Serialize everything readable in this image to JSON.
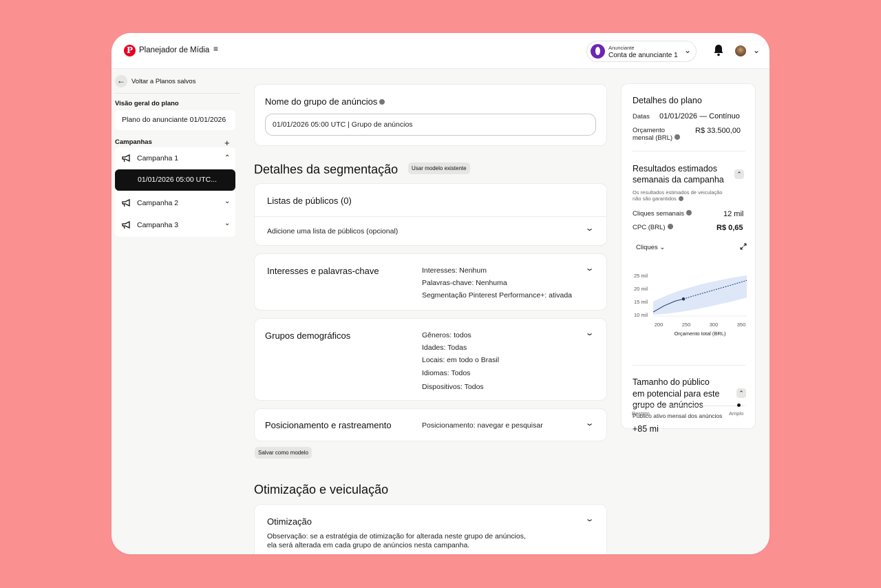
{
  "header": {
    "app_title": "Planejador de Mídia",
    "account_small": "Anunciante",
    "account_name": "Conta de anunciante 1",
    "brand_color": "#e60023",
    "account_avatar_color": "#6c25b5"
  },
  "sidebar": {
    "back_label": "Voltar a Planos salvos",
    "overview_heading": "Visão geral do plano",
    "plan_name": "Plano do anunciante 01/01/2026",
    "campaigns_heading": "Campanhas",
    "campaigns": [
      {
        "label": "Campanha 1",
        "expanded": true
      },
      {
        "label": "Campanha 2",
        "expanded": false
      },
      {
        "label": "Campanha 3",
        "expanded": false
      }
    ],
    "selected_ad_group": "01/01/2026 05:00 UTC..."
  },
  "ad_group": {
    "title": "Nome do grupo de anúncios",
    "name_value": "01/01/2026 05:00 UTC | Grupo de anúncios"
  },
  "targeting": {
    "heading": "Detalhes da segmentação",
    "use_template": "Usar modelo existente",
    "audience_title": "Listas de públicos (0)",
    "audience_add": "Adicione uma lista de públicos (opcional)",
    "interests_title": "Interesses e palavras-chave",
    "interests_lines": [
      "Interesses: Nenhum",
      "Palavras-chave: Nenhuma",
      "Segmentação Pinterest Performance+: ativada"
    ],
    "demographics_title": "Grupos demográficos",
    "demographics_lines": [
      "Gêneros: todos",
      "Idades: Todas",
      "Locais: em todo o Brasil",
      "Idiomas: Todos",
      "Dispositivos: Todos"
    ],
    "placement_title": "Posicionamento e rastreamento",
    "placement_value": "Posicionamento: navegar e pesquisar",
    "save_template": "Salvar como modelo"
  },
  "optimization": {
    "heading": "Otimização e veiculação",
    "card_title": "Otimização",
    "note_line1": "Observação: se a estratégia de otimização for alterada neste grupo de anúncios,",
    "note_line2": "ela será alterada em cada grupo de anúncios nesta campanha."
  },
  "plan_details": {
    "title": "Detalhes do plano",
    "dates_label": "Datas",
    "dates_value": "01/01/2026 — Contínuo",
    "budget_label_line1": "Orçamento",
    "budget_label_line2": "mensal (BRL)",
    "budget_value": "R$ 33.500,00",
    "results_title_line1": "Resultados estimados",
    "results_title_line2": "semanais da campanha",
    "disclaimer_line1": "Os resultados estimados de veiculação",
    "disclaimer_line2": "não são garantidos",
    "clicks_label": "Cliques semanais",
    "clicks_value": "12 mil",
    "cpc_label": "CPC (BRL)",
    "cpc_value": "R$ 0,65",
    "metric_select": "Cliques",
    "audience_title_line1": "Tamanho do público",
    "audience_title_line2": "em potencial para este",
    "audience_title_line3": "grupo de anúncios",
    "audience_sub": "Público ativo mensal dos anúncios",
    "audience_value": "+85 mi",
    "scale_min": "Restrito",
    "scale_max": "Amplo",
    "audience_level": 0.95
  },
  "chart_data": {
    "type": "line",
    "xlabel": "Orçamento total (BRL)",
    "ylabel": "",
    "x_ticks": [
      "200",
      "250",
      "300",
      "350"
    ],
    "y_ticks": [
      "25 mil",
      "20 mil",
      "15 mil",
      "10 mil"
    ],
    "xlim": [
      190,
      360
    ],
    "ylim": [
      10,
      25
    ],
    "series": [
      {
        "x": [
          190,
          210,
          230,
          245
        ],
        "y": [
          11.0,
          13.4,
          15.2,
          16.0
        ],
        "style": "solid"
      },
      {
        "x": [
          245,
          270,
          300,
          330,
          360
        ],
        "y": [
          16.0,
          17.6,
          19.4,
          21.2,
          23.1
        ],
        "style": "dashed"
      }
    ],
    "band_upper": [
      {
        "x": 190,
        "y": 15.0
      },
      {
        "x": 250,
        "y": 21.5
      },
      {
        "x": 360,
        "y": 25.0
      }
    ],
    "band_lower": [
      {
        "x": 190,
        "y": 10.0
      },
      {
        "x": 250,
        "y": 10.5
      },
      {
        "x": 360,
        "y": 16.5
      }
    ],
    "highlight_point": {
      "x": 245,
      "y": 16.0
    },
    "band_color": "#dde7f8",
    "line_color": "#1e3a6e"
  }
}
